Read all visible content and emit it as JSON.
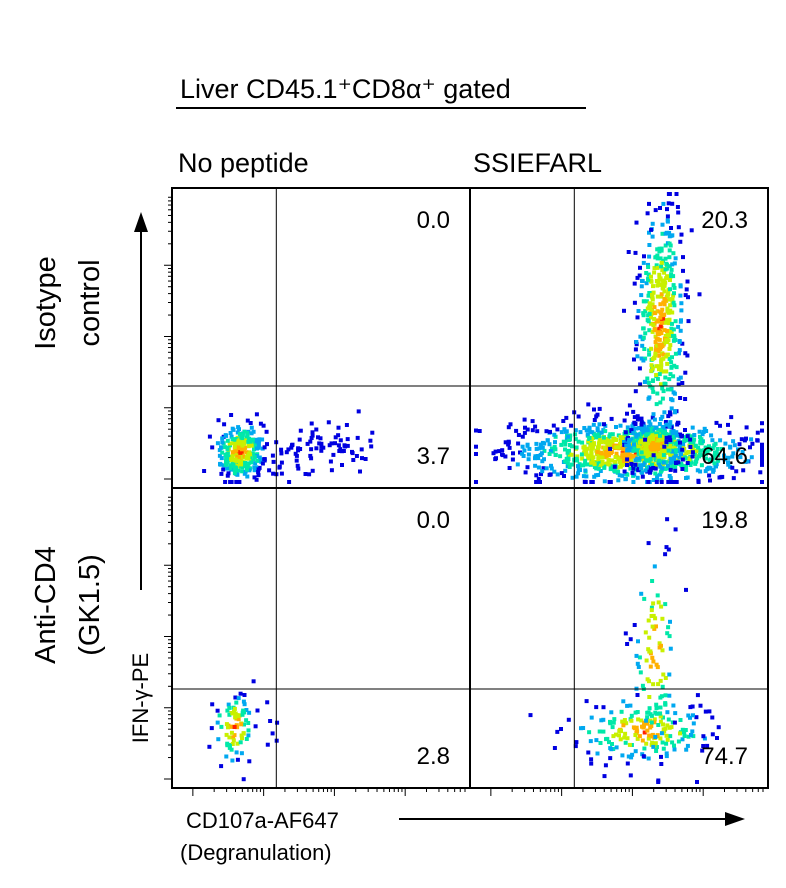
{
  "chart_data": {
    "type": "scatter",
    "title": "Liver CD45.1⁺CD8α⁺ gated",
    "column_labels": [
      "No peptide",
      "SSIEFARL"
    ],
    "row_labels": [
      [
        "Isotype",
        "control"
      ],
      [
        "Anti-CD4",
        "(GK1.5)"
      ]
    ],
    "xlabel": [
      "CD107a-AF647",
      "(Degranulation)"
    ],
    "ylabel": "IFN-γ-PE",
    "x_scale": "log",
    "y_scale": "log",
    "grid": false,
    "panels": [
      {
        "row": 0,
        "col": 0,
        "quadrant_values": {
          "upper_right": "0.0",
          "lower_right": "3.7"
        },
        "clusters": [
          {
            "cx": 0.23,
            "cy": 0.12,
            "sx": 0.04,
            "sy": 0.045,
            "n": 360,
            "tail": 0.28,
            "tail_len": 0.45
          }
        ]
      },
      {
        "row": 0,
        "col": 1,
        "quadrant_values": {
          "upper_right": "20.3",
          "lower_right": "64.6"
        },
        "clusters": [
          {
            "cx": 0.55,
            "cy": 0.12,
            "sx": 0.2,
            "sy": 0.05,
            "n": 900,
            "tail": 0.0,
            "tail_len": 0.0
          },
          {
            "cx": 0.62,
            "cy": 0.14,
            "sx": 0.05,
            "sy": 0.04,
            "n": 400,
            "tail": 0.0,
            "tail_len": 0.0
          },
          {
            "cx": 0.64,
            "cy": 0.55,
            "sx": 0.04,
            "sy": 0.19,
            "n": 450,
            "tail": 0.0,
            "tail_len": 0.0
          }
        ]
      },
      {
        "row": 1,
        "col": 0,
        "quadrant_values": {
          "upper_right": "0.0",
          "lower_right": "2.8"
        },
        "clusters": [
          {
            "cx": 0.21,
            "cy": 0.2,
            "sx": 0.035,
            "sy": 0.055,
            "n": 90,
            "tail": 0.12,
            "tail_len": 0.25
          }
        ]
      },
      {
        "row": 1,
        "col": 1,
        "quadrant_values": {
          "upper_right": "19.8",
          "lower_right": "74.7"
        },
        "clusters": [
          {
            "cx": 0.58,
            "cy": 0.19,
            "sx": 0.11,
            "sy": 0.05,
            "n": 200,
            "tail": 0.0,
            "tail_len": 0.0
          },
          {
            "cx": 0.62,
            "cy": 0.45,
            "sx": 0.035,
            "sy": 0.18,
            "n": 90,
            "tail": 0.0,
            "tail_len": 0.0
          }
        ]
      }
    ],
    "density_colors": [
      "#0000e0",
      "#00a8f0",
      "#00e8a8",
      "#c8f000",
      "#ffb000",
      "#ff2000"
    ]
  }
}
